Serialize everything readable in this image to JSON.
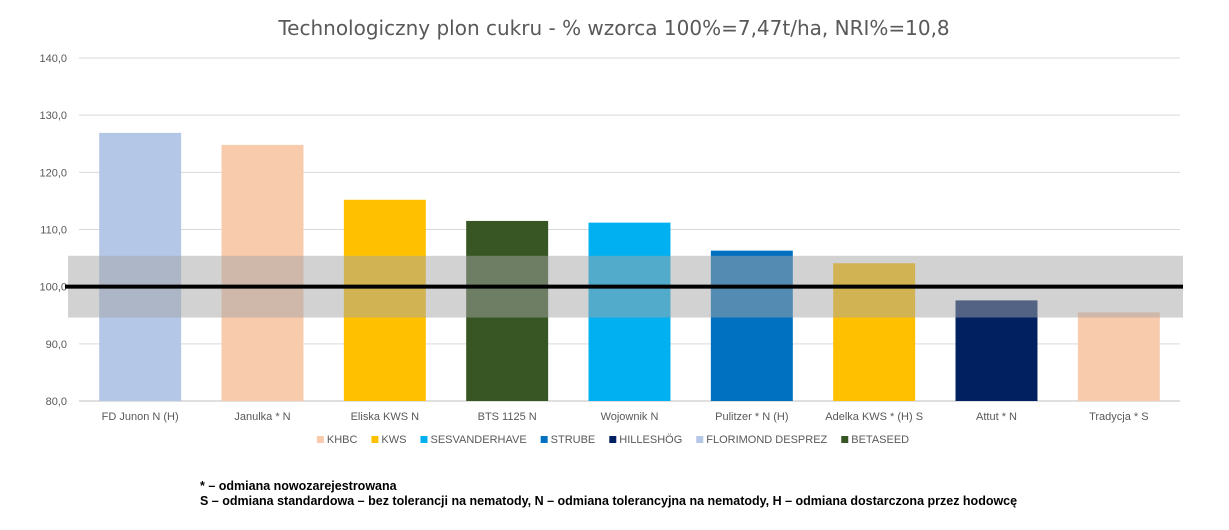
{
  "chart_data": {
    "type": "bar",
    "title": "Technologiczny plon cukru - % wzorca 100%=7,47t/ha, NRI%=10,8",
    "xlabel": "",
    "ylabel": "",
    "ylim": [
      80,
      140
    ],
    "yticks": [
      "80,0",
      "90,0",
      "100,0",
      "110,0",
      "120,0",
      "130,0",
      "140,0"
    ],
    "grid": true,
    "legend_position": "bottom",
    "categories": [
      "FD Junon N (H)",
      "Janulka * N",
      "Eliska KWS N",
      "BTS 1125 N",
      "Wojownik N",
      "Pulitzer * N (H)",
      "Adelka KWS * (H) S",
      "Attut * N",
      "Tradycja * S"
    ],
    "values": [
      126.9,
      124.8,
      115.2,
      111.5,
      111.2,
      106.3,
      104.1,
      97.6,
      95.5
    ],
    "bar_companies": [
      "FLORIMOND DESPREZ",
      "KHBC",
      "KWS",
      "BETASEED",
      "SESVANDERHAVE",
      "STRUBE",
      "KWS",
      "HILLESHÖG",
      "KHBC"
    ],
    "reference_line": 100,
    "nri_band": [
      94.6,
      105.4
    ],
    "series": [
      {
        "name": "KHBC",
        "color": "#F8CBAD"
      },
      {
        "name": "KWS",
        "color": "#FFC000"
      },
      {
        "name": "SESVANDERHAVE",
        "color": "#00B0F0"
      },
      {
        "name": "STRUBE",
        "color": "#0070C0"
      },
      {
        "name": "HILLESHÖG",
        "color": "#002060"
      },
      {
        "name": "FLORIMOND DESPREZ",
        "color": "#B4C7E7"
      },
      {
        "name": "BETASEED",
        "color": "#375623"
      }
    ]
  },
  "notes": {
    "line1": "* – odmiana nowozarejestrowana",
    "line2": "S – odmiana standardowa – bez tolerancji na nematody, N – odmiana tolerancyjna na nematody, H – odmiana dostarczona przez hodowcę"
  }
}
